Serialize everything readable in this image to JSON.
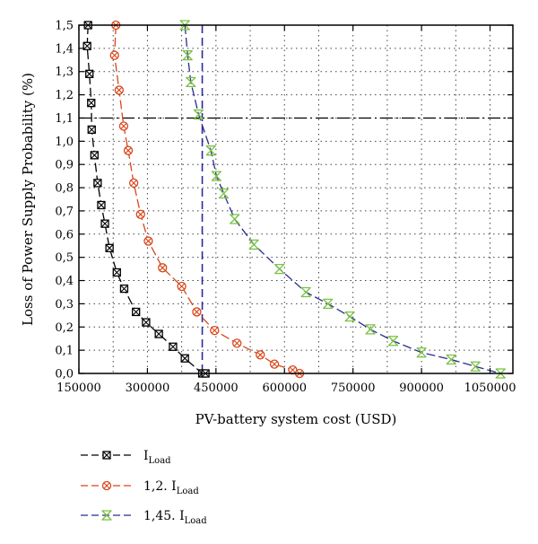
{
  "chart_data": {
    "type": "line",
    "xlabel": "PV-battery system cost (USD)",
    "ylabel": "Loss of Power Supply Probability (%)",
    "xlim": [
      150000,
      1100000
    ],
    "ylim": [
      0,
      1.5
    ],
    "x_ticks": [
      150000,
      300000,
      450000,
      600000,
      750000,
      900000,
      1050000
    ],
    "x_tick_labels": [
      "150000",
      "300000",
      "450000",
      "600000",
      "750000",
      "900000",
      "1050000"
    ],
    "y_ticks": [
      0,
      0.1,
      0.2,
      0.3,
      0.4,
      0.5,
      0.6,
      0.7,
      0.8,
      0.9,
      1.0,
      1.1,
      1.2,
      1.3,
      1.4,
      1.5
    ],
    "y_tick_labels": [
      "0,0",
      "0,1",
      "0,2",
      "0,3",
      "0,4",
      "0,5",
      "0,6",
      "0,7",
      "0,8",
      "0,9",
      "1,0",
      "1,1",
      "1,2",
      "1,3",
      "1,4",
      "1,5"
    ],
    "grid": "dotted",
    "legend_position": "bottom-left",
    "reference_lines": [
      {
        "orientation": "horizontal",
        "value": 1.1,
        "style": "dash-dot",
        "color": "#000000"
      },
      {
        "orientation": "vertical",
        "value": 420000,
        "style": "dashed",
        "color": "#2a2aa0"
      }
    ],
    "series": [
      {
        "name": "I",
        "name_sub": "Load",
        "color": "#000000",
        "marker": "boxed-x",
        "points": [
          [
            170000,
            1.5
          ],
          [
            168000,
            1.41
          ],
          [
            173000,
            1.29
          ],
          [
            177000,
            1.165
          ],
          [
            178000,
            1.05
          ],
          [
            184000,
            0.94
          ],
          [
            191000,
            0.82
          ],
          [
            199000,
            0.725
          ],
          [
            207000,
            0.645
          ],
          [
            217000,
            0.54
          ],
          [
            233000,
            0.435
          ],
          [
            249000,
            0.365
          ],
          [
            275000,
            0.265
          ],
          [
            297000,
            0.22
          ],
          [
            325000,
            0.17
          ],
          [
            356000,
            0.115
          ],
          [
            382000,
            0.065
          ],
          [
            420000,
            0.0
          ],
          [
            427000,
            0.0
          ]
        ]
      },
      {
        "name": "1,2. I",
        "name_sub": "Load",
        "color": "#d9461a",
        "marker": "circle-x",
        "points": [
          [
            231000,
            1.5
          ],
          [
            228000,
            1.37
          ],
          [
            238000,
            1.22
          ],
          [
            248000,
            1.065
          ],
          [
            258000,
            0.96
          ],
          [
            270000,
            0.82
          ],
          [
            285000,
            0.685
          ],
          [
            302000,
            0.57
          ],
          [
            333000,
            0.455
          ],
          [
            375000,
            0.375
          ],
          [
            408000,
            0.265
          ],
          [
            447000,
            0.185
          ],
          [
            496000,
            0.13
          ],
          [
            547000,
            0.08
          ],
          [
            578000,
            0.04
          ],
          [
            618000,
            0.015
          ],
          [
            633000,
            0.0
          ]
        ]
      },
      {
        "name": "1,45. I",
        "name_sub": "Load",
        "color": "#2b2b8f",
        "marker_color": "#7ac143",
        "marker": "hourglass-x",
        "points": [
          [
            382000,
            1.5
          ],
          [
            388000,
            1.37
          ],
          [
            395000,
            1.255
          ],
          [
            412000,
            1.115
          ],
          [
            439000,
            0.96
          ],
          [
            451000,
            0.85
          ],
          [
            467000,
            0.775
          ],
          [
            491000,
            0.665
          ],
          [
            533000,
            0.555
          ],
          [
            589000,
            0.45
          ],
          [
            647000,
            0.35
          ],
          [
            695000,
            0.3
          ],
          [
            743000,
            0.245
          ],
          [
            788000,
            0.19
          ],
          [
            838000,
            0.14
          ],
          [
            900000,
            0.09
          ],
          [
            965000,
            0.06
          ],
          [
            1018000,
            0.03
          ],
          [
            1073000,
            0.0
          ]
        ]
      }
    ]
  }
}
